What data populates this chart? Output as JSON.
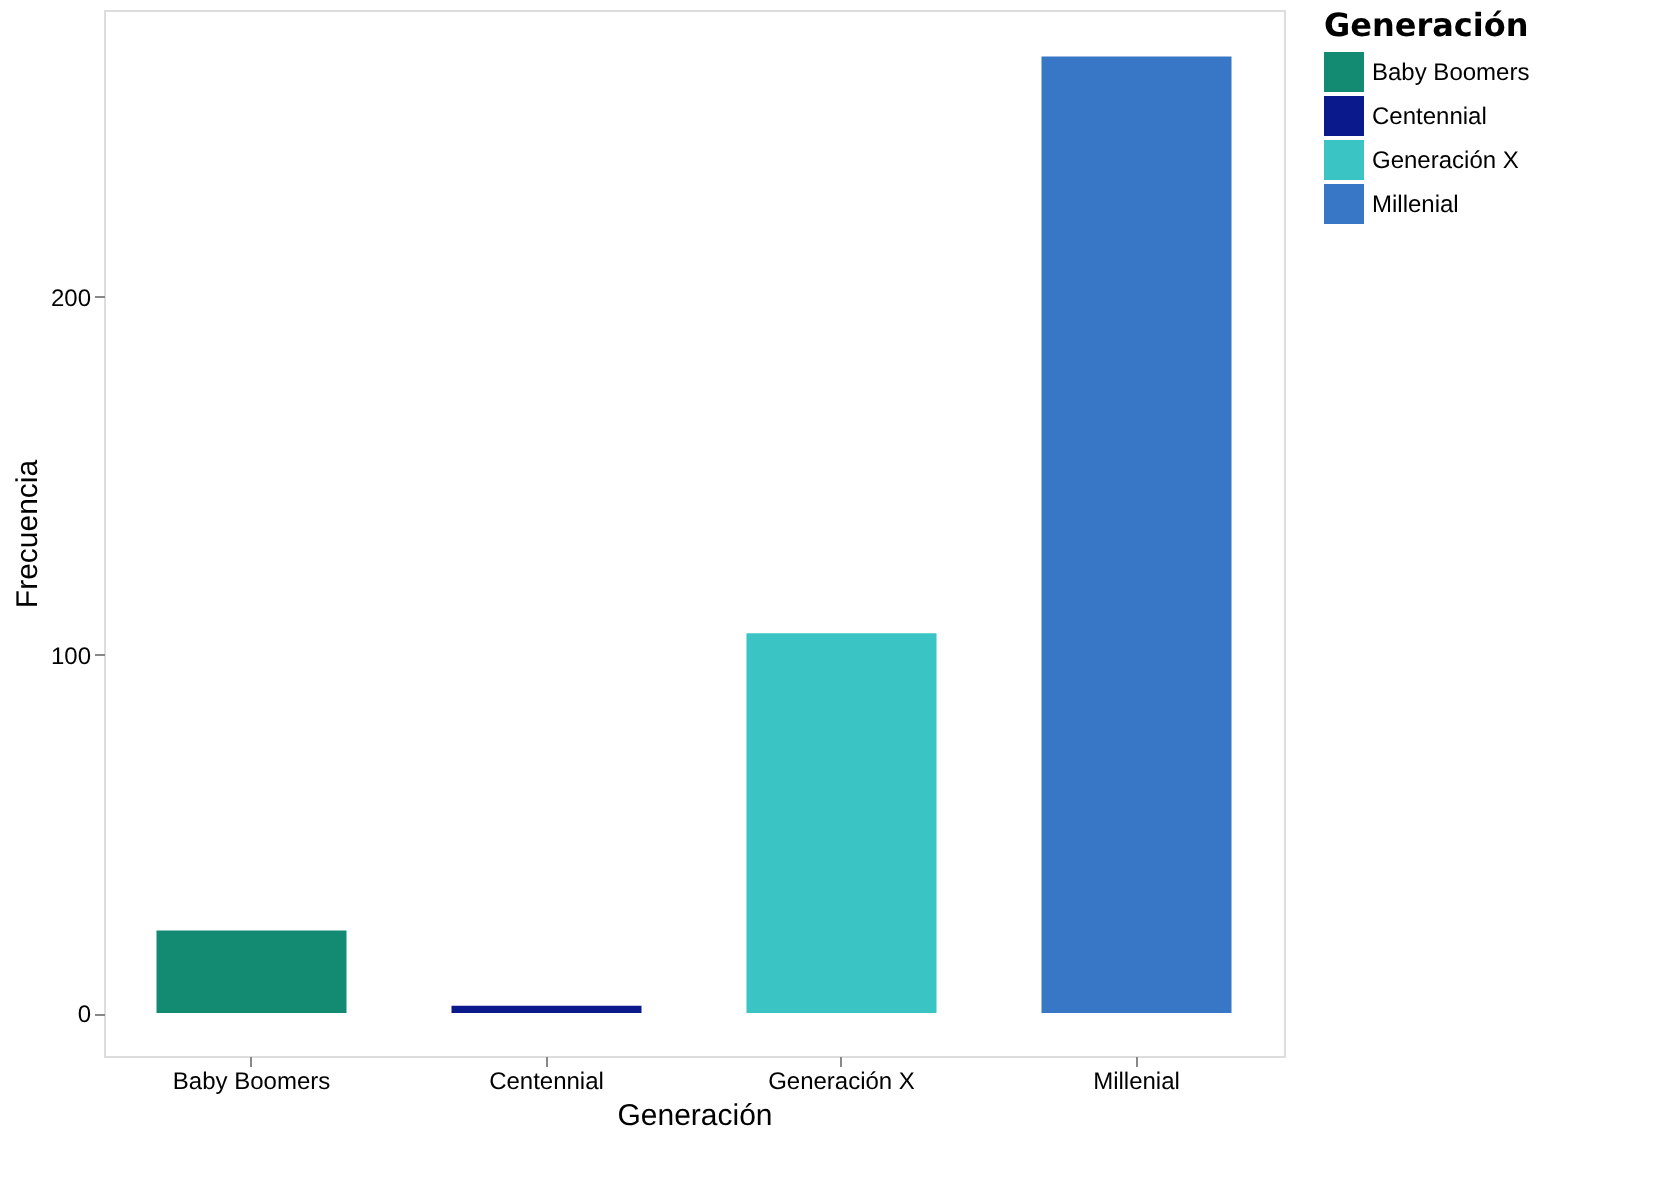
{
  "chart_data": {
    "type": "bar",
    "xlabel": "Generación",
    "ylabel": "Frecuencia",
    "legend_title": "Generación",
    "categories": [
      "Baby Boomers",
      "Centennial",
      "Generación X",
      "Millenial"
    ],
    "stacked": true,
    "series": [
      {
        "name": "Baby Boomers",
        "color": "#138a72",
        "values": [
          23,
          null,
          null,
          null
        ]
      },
      {
        "name": "Centennial",
        "color": "#0a1a8c",
        "values": [
          null,
          2,
          null,
          null
        ]
      },
      {
        "name": "Generación X",
        "color": "#3bc4c4",
        "values": [
          null,
          null,
          106,
          null
        ]
      },
      {
        "name": "Millenial",
        "color": "#3777c6",
        "values": [
          null,
          null,
          null,
          267
        ]
      }
    ],
    "ylim": [
      -12,
      280
    ],
    "yticks": [
      0,
      100,
      200
    ],
    "grid": false,
    "legend": "right"
  }
}
